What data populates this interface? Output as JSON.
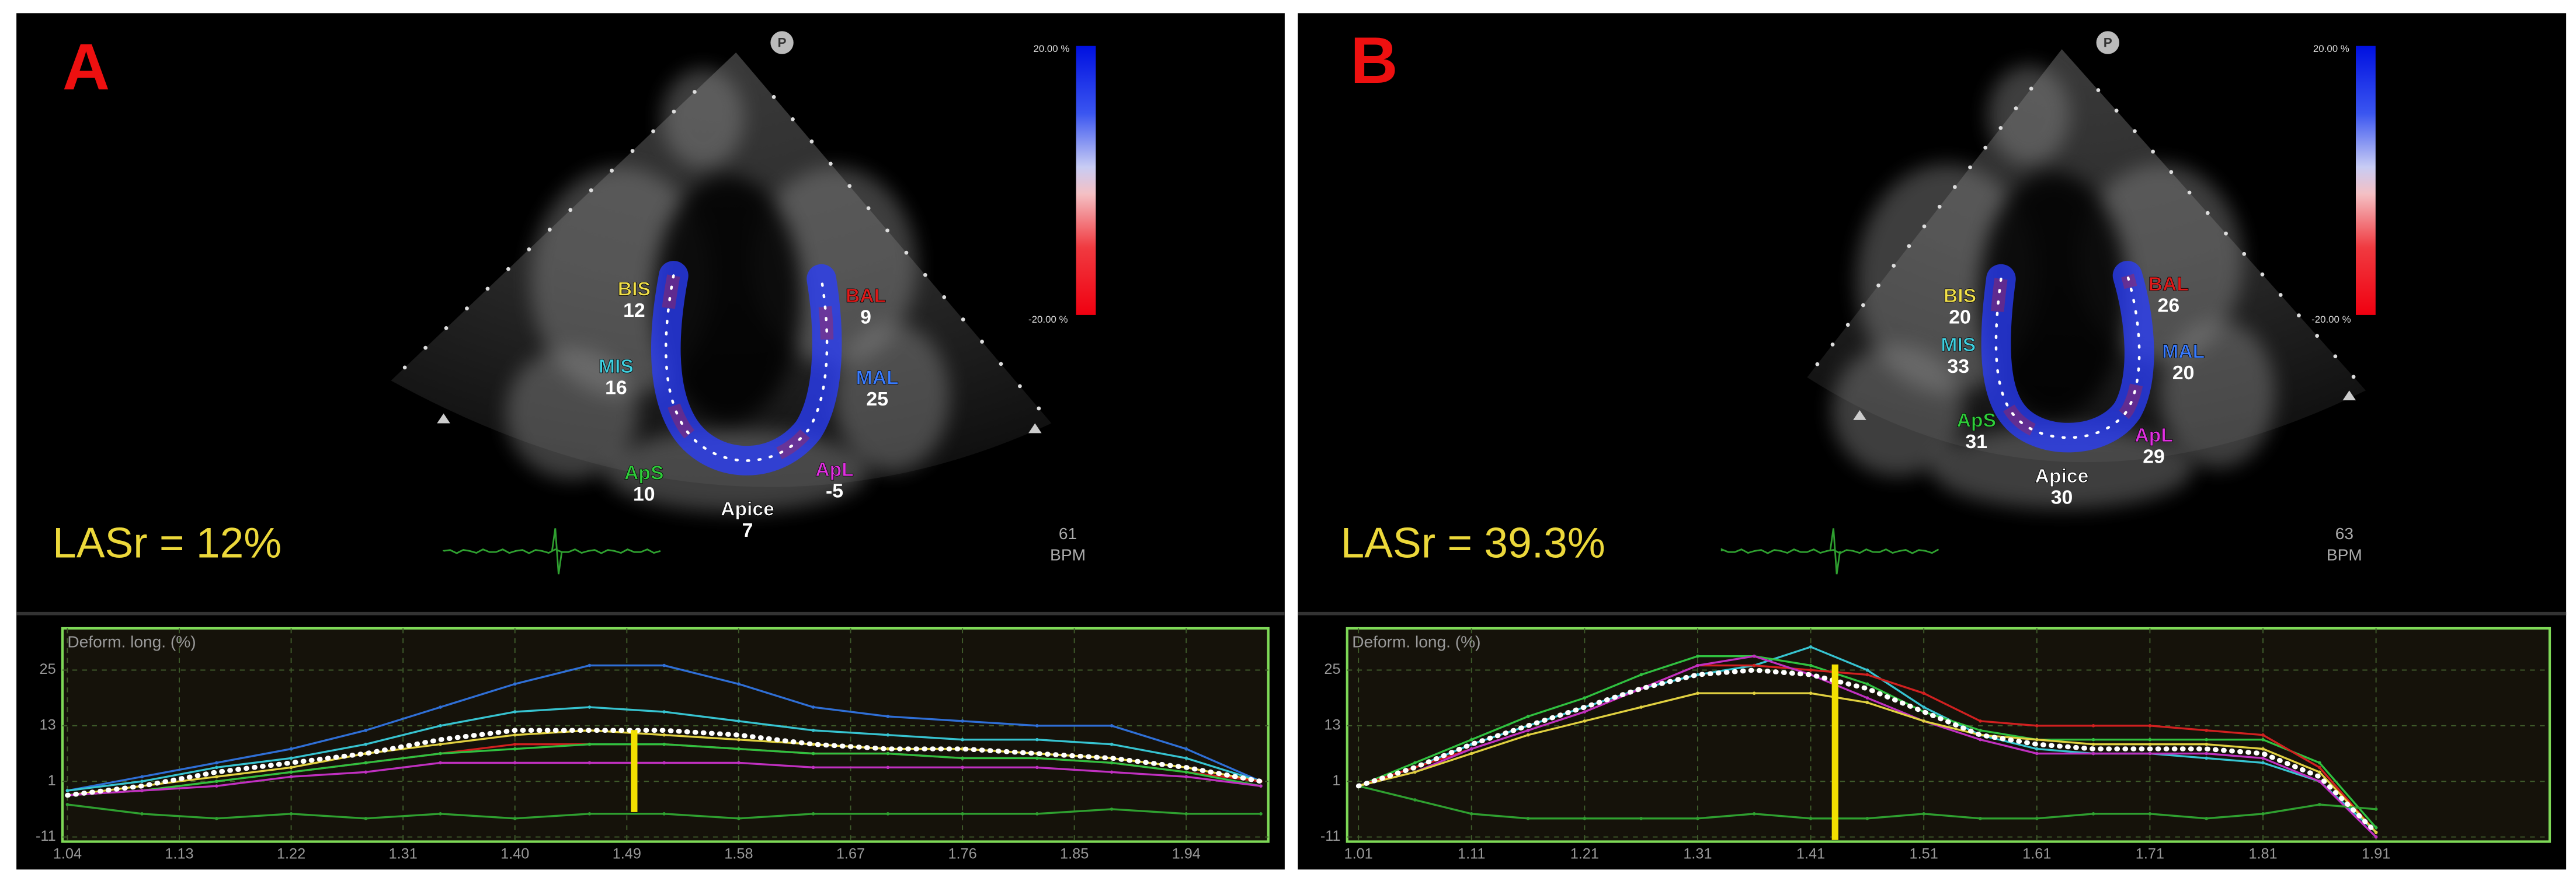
{
  "panels": [
    {
      "label": "A",
      "marker": "P",
      "scale": {
        "max": "20.00 %",
        "min": "-20.00 %"
      },
      "segments": [
        {
          "name": "BIS",
          "value": 12,
          "color": "#f2e14a"
        },
        {
          "name": "MIS",
          "value": 16,
          "color": "#3fd0e0"
        },
        {
          "name": "ApS",
          "value": 10,
          "color": "#2fcc3a"
        },
        {
          "name": "Apice",
          "value": 7,
          "color": "#ffffff"
        },
        {
          "name": "ApL",
          "value": -5,
          "color": "#e030e0"
        },
        {
          "name": "MAL",
          "value": 25,
          "color": "#3a7cff"
        },
        {
          "name": "BAL",
          "value": 9,
          "color": "#e01a1a"
        }
      ],
      "lasr": "LASr = 12%",
      "heart_rate": {
        "value": 61,
        "unit": "BPM"
      }
    },
    {
      "label": "B",
      "marker": "P",
      "scale": {
        "max": "20.00 %",
        "min": "-20.00 %"
      },
      "segments": [
        {
          "name": "BIS",
          "value": 20,
          "color": "#f2e14a"
        },
        {
          "name": "MIS",
          "value": 33,
          "color": "#3fd0e0"
        },
        {
          "name": "ApS",
          "value": 31,
          "color": "#2fcc3a"
        },
        {
          "name": "Apice",
          "value": 30,
          "color": "#ffffff"
        },
        {
          "name": "ApL",
          "value": 29,
          "color": "#e030e0"
        },
        {
          "name": "MAL",
          "value": 20,
          "color": "#3a7cff"
        },
        {
          "name": "BAL",
          "value": 26,
          "color": "#e01a1a"
        }
      ],
      "lasr": "LASr = 39.3%",
      "heart_rate": {
        "value": 63,
        "unit": "BPM"
      }
    }
  ],
  "chart_data": [
    {
      "type": "line",
      "title": "Deform. long. (%)",
      "grid": true,
      "x": [
        1.04,
        1.1,
        1.16,
        1.22,
        1.28,
        1.34,
        1.4,
        1.46,
        1.52,
        1.58,
        1.64,
        1.7,
        1.76,
        1.82,
        1.88,
        1.94,
        2.0
      ],
      "series": [
        {
          "color": "#2f6fd6",
          "values": [
            -1,
            2,
            5,
            8,
            12,
            17,
            22,
            26,
            26,
            22,
            17,
            15,
            14,
            13,
            13,
            8,
            1
          ]
        },
        {
          "color": "#37c3d0",
          "values": [
            -1,
            1,
            4,
            6,
            9,
            13,
            16,
            17,
            16,
            14,
            12,
            11,
            10,
            10,
            9,
            6,
            1
          ]
        },
        {
          "color": "#e0d040",
          "values": [
            -2,
            0,
            2,
            4,
            7,
            9,
            11,
            12,
            11,
            10,
            9,
            8,
            8,
            7,
            6,
            4,
            1
          ]
        },
        {
          "color": "#d02020",
          "values": [
            -2,
            -1,
            1,
            3,
            5,
            7,
            9,
            9,
            9,
            8,
            7,
            7,
            6,
            6,
            5,
            3,
            1
          ]
        },
        {
          "color": "#30c040",
          "values": [
            -2,
            -1,
            1,
            3,
            5,
            7,
            8,
            9,
            9,
            8,
            7,
            7,
            6,
            6,
            5,
            3,
            0
          ]
        },
        {
          "color": "#c030c0",
          "values": [
            -2,
            -1,
            0,
            2,
            3,
            5,
            5,
            5,
            5,
            5,
            4,
            4,
            4,
            4,
            3,
            2,
            0
          ]
        },
        {
          "color": "#2fa030",
          "values": [
            -4,
            -6,
            -7,
            -6,
            -7,
            -6,
            -7,
            -6,
            -6,
            -7,
            -6,
            -6,
            -6,
            -6,
            -5,
            -6,
            -6
          ]
        },
        {
          "color": "#ffffff",
          "style": "dotted",
          "values": [
            -2,
            0,
            3,
            5,
            7,
            10,
            12,
            12,
            12,
            11,
            9,
            8,
            8,
            7,
            6,
            4,
            1
          ]
        }
      ],
      "xlim": [
        1.036,
        2.006
      ],
      "ylim": [
        -12,
        34
      ],
      "yticks": [
        -11,
        1,
        13,
        25
      ],
      "xticks": [
        1.04,
        1.13,
        1.22,
        1.31,
        {
          "value": 1.4,
          "label": "1.40"
        },
        1.49,
        1.58,
        1.67,
        1.76,
        1.85,
        1.94
      ]
    },
    {
      "type": "line",
      "title": "Deform. long. (%)",
      "grid": true,
      "x": [
        1.01,
        1.06,
        1.11,
        1.16,
        1.21,
        1.26,
        1.31,
        1.36,
        1.41,
        1.46,
        1.51,
        1.56,
        1.61,
        1.66,
        1.71,
        1.76,
        1.81,
        1.86,
        1.91
      ],
      "series": [
        {
          "color": "#37c3d0",
          "values": [
            0,
            4,
            9,
            13,
            17,
            21,
            24,
            26,
            30,
            25,
            17,
            11,
            8,
            7,
            7,
            6,
            5,
            1,
            -10
          ]
        },
        {
          "color": "#30c040",
          "values": [
            0,
            5,
            10,
            15,
            19,
            24,
            28,
            28,
            26,
            22,
            16,
            12,
            10,
            10,
            10,
            10,
            10,
            5,
            -9
          ]
        },
        {
          "color": "#d02020",
          "values": [
            0,
            4,
            8,
            12,
            16,
            21,
            26,
            26,
            25,
            24,
            20,
            14,
            13,
            13,
            13,
            12,
            11,
            4,
            -10
          ]
        },
        {
          "color": "#c030c0",
          "values": [
            0,
            3,
            8,
            12,
            16,
            21,
            26,
            28,
            24,
            19,
            14,
            10,
            7,
            7,
            7,
            7,
            6,
            1,
            -11
          ]
        },
        {
          "color": "#e0d040",
          "values": [
            0,
            3,
            7,
            11,
            14,
            17,
            20,
            20,
            20,
            18,
            14,
            11,
            10,
            9,
            9,
            9,
            8,
            3,
            -10
          ]
        },
        {
          "color": "#2fa030",
          "values": [
            0,
            -3,
            -6,
            -7,
            -7,
            -7,
            -7,
            -6,
            -7,
            -7,
            -6,
            -7,
            -7,
            -6,
            -6,
            -7,
            -6,
            -4,
            -5
          ]
        },
        {
          "color": "#ffffff",
          "style": "dotted",
          "values": [
            0,
            4,
            9,
            13,
            17,
            21,
            24,
            25,
            24,
            21,
            16,
            11,
            9,
            8,
            8,
            8,
            7,
            2,
            -10
          ]
        }
      ],
      "xlim": [
        1.0,
        2.0636
      ],
      "ylim": [
        -12,
        34
      ],
      "yticks": [
        -11,
        1,
        13,
        25
      ],
      "xticks": [
        1.01,
        1.11,
        1.21,
        1.31,
        1.41,
        1.51,
        1.61,
        1.71,
        1.81,
        1.91
      ]
    }
  ]
}
